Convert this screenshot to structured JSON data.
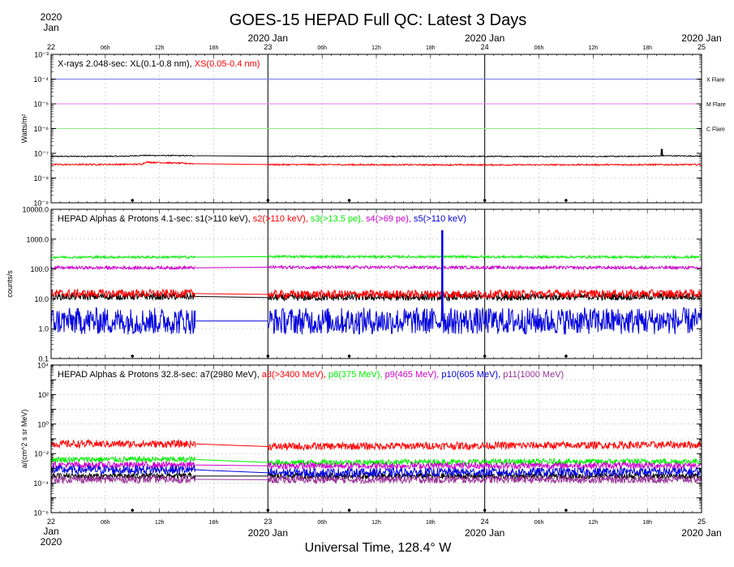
{
  "title": "GOES-15 HEPAD Full QC: Latest 3 Days",
  "xlabel": "Universal Time, 128.4° W",
  "time_axis": {
    "start": "2020-01-22T00:00Z",
    "end": "2020-01-25T00:00Z",
    "day_labels": [
      {
        "day": "22",
        "top": "2020 Jan",
        "bottom": "Jan 2020"
      },
      {
        "day": "23",
        "top": "2020 Jan",
        "bottom": "2020 Jan"
      },
      {
        "day": "24",
        "top": "2020 Jan",
        "bottom": "2020 Jan"
      },
      {
        "day": "25",
        "top": "2020 Jan",
        "bottom": "2020 Jan"
      }
    ],
    "hour_labels": [
      "06h",
      "12h",
      "18h"
    ],
    "first_top_year": "2020",
    "first_top_month": "Jan",
    "first_bottom_month": "Jan",
    "first_bottom_year": "2020"
  },
  "colors": {
    "black": "#000000",
    "red": "#ff0000",
    "green": "#00ee00",
    "magenta": "#cc00cc",
    "blue": "#0000dd",
    "purple": "#993399",
    "xflare": "#7777ee",
    "mflare": "#ee77ee",
    "cflare": "#88ee88",
    "grid": "#bbbbbb"
  },
  "panels": [
    {
      "id": "xrays",
      "ylabel": "Watts/m²",
      "title_segments": [
        {
          "text": "X-rays  2.048-sec: XL(0.1-0.8 nm), ",
          "color": "black"
        },
        {
          "text": "XS(0.05-0.4 nm)",
          "color": "red"
        }
      ],
      "ylim_exp": [
        -9,
        -3
      ],
      "tick_labels": [
        {
          "exp": -3,
          "label": "10⁻³"
        },
        {
          "exp": -4,
          "label": "10⁻⁴"
        },
        {
          "exp": -5,
          "label": "10⁻⁵"
        },
        {
          "exp": -6,
          "label": "10⁻⁶"
        },
        {
          "exp": -7,
          "label": "10⁻⁷"
        },
        {
          "exp": -8,
          "label": "10⁻⁸"
        },
        {
          "exp": -9,
          "label": "10⁻⁹"
        }
      ],
      "thresholds": [
        {
          "name": "X Flare",
          "exp": -4,
          "color": "xflare"
        },
        {
          "name": "M Flare",
          "exp": -5,
          "color": "mflare"
        },
        {
          "name": "C Flare",
          "exp": -6,
          "color": "cflare"
        }
      ]
    },
    {
      "id": "hepad-4s",
      "ylabel": "counts/s",
      "title_segments": [
        {
          "text": "HEPAD Alphas & Protons 4.1-sec: s1(>110 keV), ",
          "color": "black"
        },
        {
          "text": "s2(>110 keV), ",
          "color": "red"
        },
        {
          "text": "s3(>13.5 pe), ",
          "color": "green"
        },
        {
          "text": "s4(>69 pe), ",
          "color": "magenta"
        },
        {
          "text": "s5(>110 keV)",
          "color": "blue"
        }
      ],
      "ylim_exp": [
        -1,
        4
      ],
      "tick_labels": [
        {
          "exp": 4,
          "label": "10000.0"
        },
        {
          "exp": 3,
          "label": "1000.0"
        },
        {
          "exp": 2,
          "label": "100.0"
        },
        {
          "exp": 1,
          "label": "10.0"
        },
        {
          "exp": 0,
          "label": "1.0"
        },
        {
          "exp": -1,
          "label": "0.1"
        }
      ]
    },
    {
      "id": "hepad-32s",
      "ylabel": "a/(cm^2 s sr MeV)",
      "title_segments": [
        {
          "text": "HEPAD Alphas & Protons 32.8-sec: a7(2980 MeV), ",
          "color": "black"
        },
        {
          "text": "a8(>3400 MeV), ",
          "color": "red"
        },
        {
          "text": "p8(375 MeV), ",
          "color": "green"
        },
        {
          "text": "p9(465 MeV), ",
          "color": "magenta"
        },
        {
          "text": "p10(605 MeV), ",
          "color": "blue"
        },
        {
          "text": "p11(1000 MeV)",
          "color": "purple"
        }
      ],
      "ylim_exp": [
        -6,
        4
      ],
      "tick_labels": [
        {
          "exp": 4,
          "label": "10⁴"
        },
        {
          "exp": 2,
          "label": "10²"
        },
        {
          "exp": 0,
          "label": "10⁰"
        },
        {
          "exp": -2,
          "label": "10⁻²"
        },
        {
          "exp": -4,
          "label": "10⁻⁴"
        },
        {
          "exp": -6,
          "label": "10⁻⁶"
        }
      ]
    }
  ],
  "chart_data": {
    "type": "line",
    "title": "GOES-15 HEPAD Full QC: Latest 3 Days",
    "xlabel": "Universal Time, 128.4° W",
    "x_range": [
      "2020-01-22T00:00Z",
      "2020-01-25T00:00Z"
    ],
    "yscale": "log",
    "grid": true,
    "data_gap": [
      "2020-01-22T16:00Z",
      "2020-01-23T00:00Z"
    ],
    "panels": [
      {
        "ylabel": "Watts/m²",
        "ylim": [
          1e-09,
          0.001
        ],
        "series": [
          {
            "name": "XL(0.1-0.8 nm)",
            "color": "black",
            "x_hours": [
              0,
              8,
              10,
              16,
              24,
              48,
              64,
              67.5,
              67.6,
              67.7,
              72
            ],
            "values": [
              7.5e-08,
              7.6e-08,
              8.2e-08,
              8e-08,
              7.6e-08,
              7.5e-08,
              7.5e-08,
              7.8e-08,
              1.5e-07,
              8e-08,
              7.7e-08
            ]
          },
          {
            "name": "XS(0.05-0.4 nm)",
            "color": "red",
            "x_hours": [
              0,
              10,
              10.5,
              16,
              24,
              48,
              72
            ],
            "values": [
              3.5e-08,
              3.6e-08,
              4.4e-08,
              3.8e-08,
              3.5e-08,
              3.4e-08,
              3.5e-08
            ]
          }
        ],
        "reference_lines": [
          {
            "name": "X Flare",
            "y": 0.0001
          },
          {
            "name": "M Flare",
            "y": 1e-05
          },
          {
            "name": "C Flare",
            "y": 1e-06
          }
        ]
      },
      {
        "ylabel": "counts/s",
        "ylim": [
          0.1,
          10000
        ],
        "series": [
          {
            "name": "s1(>110 keV)",
            "color": "black",
            "x_hours": [
              0,
              16,
              24,
              72
            ],
            "values": [
              12,
              12,
              11,
              12
            ]
          },
          {
            "name": "s2(>110 keV)",
            "color": "red",
            "x_hours": [
              0,
              16,
              24,
              72
            ],
            "values": [
              15,
              15,
              14,
              15
            ]
          },
          {
            "name": "s3(>13.5 pe)",
            "color": "green",
            "x_hours": [
              0,
              16,
              24,
              72
            ],
            "values": [
              250,
              250,
              260,
              250
            ]
          },
          {
            "name": "s4(>69 pe)",
            "color": "magenta",
            "x_hours": [
              0,
              16,
              24,
              72
            ],
            "values": [
              110,
              110,
              115,
              110
            ]
          },
          {
            "name": "s5(>110 keV)",
            "color": "blue",
            "x_hours": [
              0,
              16,
              24,
              43.2,
              43.3,
              43.4,
              72
            ],
            "values": [
              1.8,
              1.8,
              1.8,
              1.8,
              2000,
              1.8,
              1.8
            ]
          }
        ]
      },
      {
        "ylabel": "a/(cm^2 s sr MeV)",
        "ylim": [
          1e-06,
          10000.0
        ],
        "series": [
          {
            "name": "a7(2980 MeV)",
            "color": "black",
            "x_hours": [
              0,
              16,
              24,
              72
            ],
            "values": [
              0.0003,
              0.0003,
              0.0003,
              0.0003
            ]
          },
          {
            "name": "a8(>3400 MeV)",
            "color": "red",
            "x_hours": [
              0,
              16,
              24,
              72
            ],
            "values": [
              0.045,
              0.045,
              0.03,
              0.04
            ]
          },
          {
            "name": "p8(375 MeV)",
            "color": "green",
            "x_hours": [
              0,
              16,
              24,
              72
            ],
            "values": [
              0.004,
              0.004,
              0.0025,
              0.003
            ]
          },
          {
            "name": "p9(465 MeV)",
            "color": "magenta",
            "x_hours": [
              0,
              16,
              24,
              72
            ],
            "values": [
              0.0017,
              0.0017,
              0.0015,
              0.0016
            ]
          },
          {
            "name": "p10(605 MeV)",
            "color": "blue",
            "x_hours": [
              0,
              16,
              24,
              72
            ],
            "values": [
              0.0008,
              0.0008,
              0.0005,
              0.0006
            ]
          },
          {
            "name": "p11(1000 MeV)",
            "color": "purple",
            "x_hours": [
              0,
              16,
              24,
              72
            ],
            "values": [
              0.00018,
              0.00018,
              0.00017,
              0.00018
            ]
          }
        ]
      }
    ]
  }
}
